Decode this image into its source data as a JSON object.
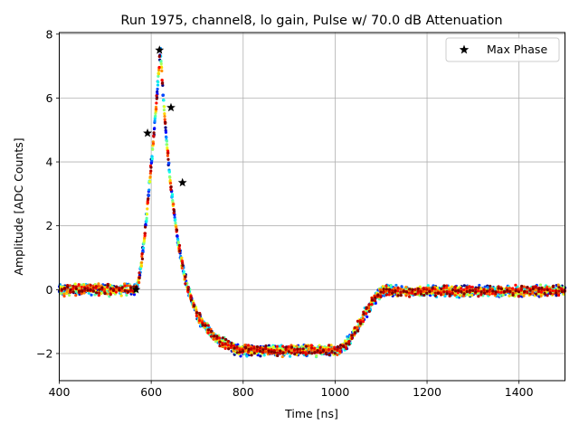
{
  "chart_data": {
    "type": "scatter",
    "title": "Run 1975, channel8, lo gain, Pulse w/ 70.0 dB Attenuation",
    "xlabel": "Time [ns]",
    "ylabel": "Amplitude [ADC Counts]",
    "xlim": [
      400,
      1500
    ],
    "ylim": [
      -2.85,
      8.05
    ],
    "xticks": [
      400,
      600,
      800,
      1000,
      1200,
      1400
    ],
    "yticks": [
      -2,
      0,
      2,
      4,
      6,
      8
    ],
    "grid": true,
    "legend": {
      "position": "top-right",
      "entries": [
        "Max Phase"
      ]
    },
    "colormap": "jet",
    "waveform": {
      "description": "overlaid pulse samples, many phases, colored by phase",
      "baseline": 0.0,
      "rise_start": 567,
      "peak_time": 620,
      "peak_value": 7.5,
      "undershoot_value": -1.9,
      "undershoot_start": 790,
      "undershoot_end": 1000,
      "recovery_end": 1115,
      "noise": 0.12,
      "sample_spacing": 6.25,
      "phases": 16
    },
    "max_phase": {
      "name": "Max Phase",
      "x": [
        567,
        592,
        618,
        643,
        668
      ],
      "y": [
        0.0,
        4.9,
        7.5,
        5.7,
        3.35
      ]
    }
  }
}
